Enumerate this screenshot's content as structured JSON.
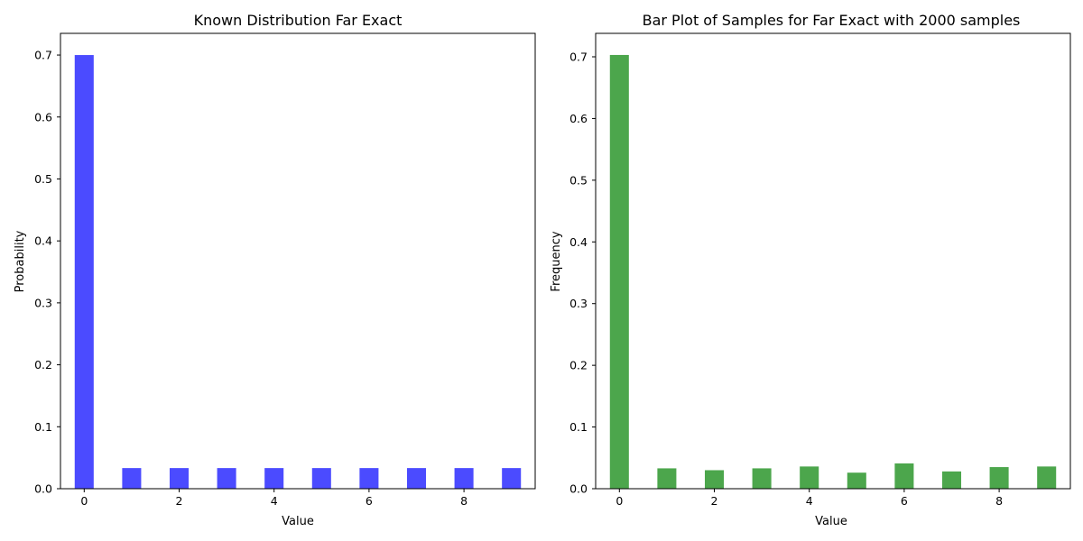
{
  "chart_data": [
    {
      "type": "bar",
      "title": "Known Distribution Far Exact",
      "xlabel": "Value",
      "ylabel": "Probability",
      "color": "#4b4bff",
      "x": [
        0,
        1,
        2,
        3,
        4,
        5,
        6,
        7,
        8,
        9
      ],
      "values": [
        0.7,
        0.0333,
        0.0333,
        0.0333,
        0.0333,
        0.0333,
        0.0333,
        0.0333,
        0.0333,
        0.0333
      ],
      "xticks": [
        "0",
        "2",
        "4",
        "6",
        "8"
      ],
      "yticks": [
        "0.0",
        "0.1",
        "0.2",
        "0.3",
        "0.4",
        "0.5",
        "0.6",
        "0.7"
      ],
      "xlim": [
        -0.5,
        9.5
      ],
      "ylim": [
        0,
        0.735
      ],
      "grid": false,
      "legend": null
    },
    {
      "type": "bar",
      "title": "Bar Plot of Samples for Far Exact with 2000 samples",
      "xlabel": "Value",
      "ylabel": "Frequency",
      "color": "#4ca64c",
      "x": [
        0,
        1,
        2,
        3,
        4,
        5,
        6,
        7,
        8,
        9
      ],
      "values": [
        0.703,
        0.033,
        0.03,
        0.033,
        0.036,
        0.026,
        0.041,
        0.028,
        0.035,
        0.036
      ],
      "xticks": [
        "0",
        "2",
        "4",
        "6",
        "8"
      ],
      "yticks": [
        "0.0",
        "0.1",
        "0.2",
        "0.3",
        "0.4",
        "0.5",
        "0.6",
        "0.7"
      ],
      "xlim": [
        -0.5,
        9.5
      ],
      "ylim": [
        0,
        0.738
      ],
      "grid": false,
      "legend": null
    }
  ]
}
